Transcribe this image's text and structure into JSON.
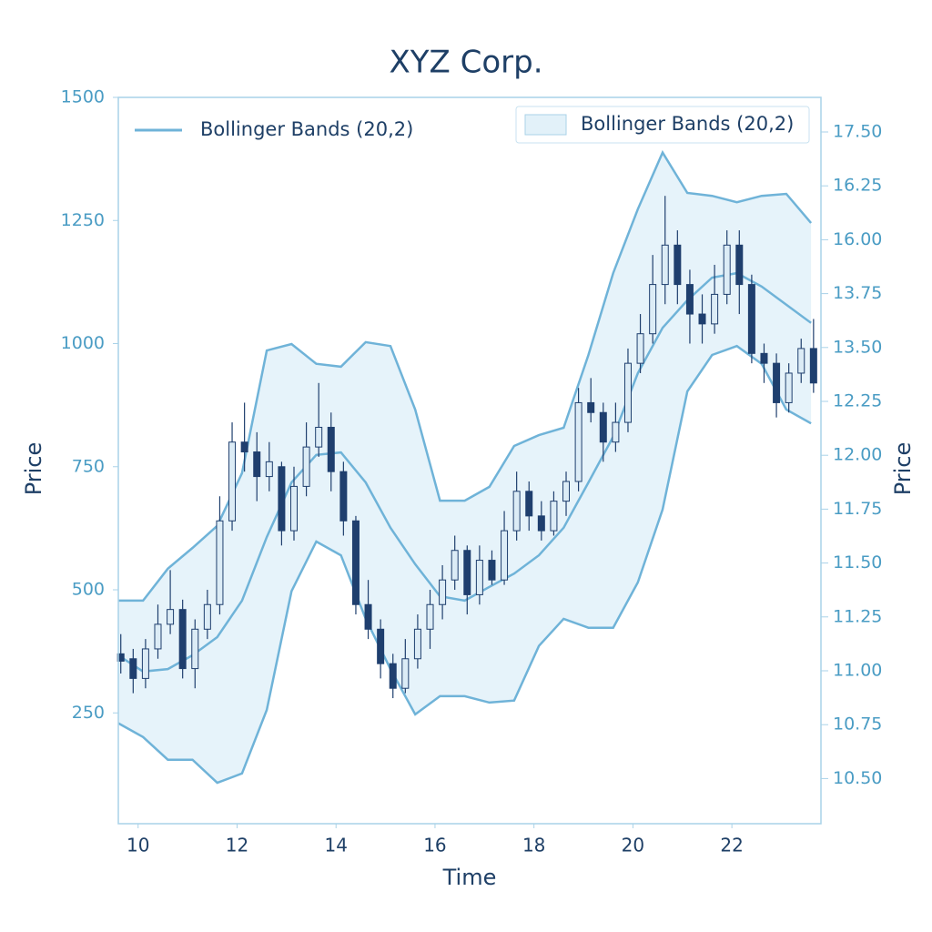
{
  "chart_data": {
    "type": "candlestick",
    "title": "XYZ Corp.",
    "xlabel": "Time",
    "ylabel": "Price",
    "y2label": "Price",
    "xlim": [
      9.6,
      23.8
    ],
    "xticks": [
      10,
      12,
      14,
      16,
      18,
      20,
      22
    ],
    "ylim": [
      25,
      1500
    ],
    "yticks": [
      250,
      500,
      750,
      1000,
      1250,
      1500
    ],
    "y2ticks": [
      "17.50",
      "16.25",
      "16.00",
      "13.75",
      "13.50",
      "12.25",
      "12.00",
      "11.75",
      "11.50",
      "11.25",
      "11.00",
      "10.75",
      "10.50"
    ],
    "candles": {
      "up_color": "#dcecf6",
      "down_color": "#1f3f6e",
      "x": [
        9.65,
        9.9,
        10.15,
        10.4,
        10.65,
        10.9,
        11.15,
        11.4,
        11.65,
        11.9,
        12.15,
        12.4,
        12.65,
        12.9,
        13.15,
        13.4,
        13.65,
        13.9,
        14.15,
        14.4,
        14.65,
        14.9,
        15.15,
        15.4,
        15.65,
        15.9,
        16.15,
        16.4,
        16.65,
        16.9,
        17.15,
        17.4,
        17.65,
        17.9,
        18.15,
        18.4,
        18.65,
        18.9,
        19.15,
        19.4,
        19.65,
        19.9,
        20.15,
        20.4,
        20.65,
        20.9,
        21.15,
        21.4,
        21.65,
        21.9,
        22.15,
        22.4,
        22.65,
        22.9,
        23.15,
        23.4,
        23.65
      ],
      "open": [
        370,
        360,
        320,
        380,
        430,
        460,
        340,
        420,
        470,
        640,
        800,
        780,
        730,
        750,
        620,
        710,
        790,
        830,
        740,
        640,
        470,
        420,
        350,
        300,
        360,
        420,
        470,
        520,
        580,
        490,
        560,
        520,
        620,
        700,
        650,
        620,
        680,
        720,
        880,
        860,
        800,
        840,
        960,
        1020,
        1120,
        1200,
        1120,
        1060,
        1040,
        1100,
        1200,
        1120,
        980,
        960,
        880,
        940,
        990
      ],
      "high": [
        410,
        380,
        400,
        470,
        540,
        480,
        440,
        500,
        690,
        840,
        880,
        820,
        800,
        760,
        750,
        840,
        920,
        860,
        760,
        650,
        520,
        440,
        370,
        400,
        450,
        500,
        550,
        610,
        590,
        590,
        580,
        660,
        740,
        720,
        680,
        700,
        740,
        910,
        930,
        880,
        880,
        990,
        1060,
        1180,
        1300,
        1230,
        1150,
        1100,
        1160,
        1230,
        1230,
        1140,
        1000,
        980,
        960,
        1010,
        1050
      ],
      "low": [
        330,
        290,
        300,
        360,
        410,
        320,
        300,
        400,
        450,
        620,
        740,
        680,
        700,
        590,
        600,
        690,
        770,
        700,
        610,
        450,
        400,
        320,
        280,
        290,
        340,
        380,
        440,
        500,
        450,
        470,
        510,
        510,
        600,
        620,
        600,
        610,
        650,
        700,
        840,
        760,
        780,
        820,
        940,
        1000,
        1080,
        1080,
        1000,
        1000,
        1020,
        1080,
        1060,
        960,
        920,
        850,
        860,
        920,
        900
      ],
      "close": [
        355,
        320,
        380,
        430,
        460,
        340,
        420,
        470,
        640,
        800,
        780,
        730,
        760,
        620,
        710,
        790,
        830,
        740,
        640,
        470,
        420,
        350,
        300,
        360,
        420,
        470,
        520,
        580,
        490,
        560,
        520,
        620,
        700,
        650,
        620,
        680,
        720,
        880,
        860,
        800,
        840,
        960,
        1020,
        1120,
        1200,
        1120,
        1060,
        1040,
        1100,
        1200,
        1120,
        980,
        960,
        880,
        940,
        990,
        920
      ]
    },
    "bollinger": {
      "line_name": "Bollinger Bands (20,2)",
      "fill_name": "Bollinger Bands (20,2)",
      "line_color": "#6fb3d8",
      "fill_color": "#e2f1f9",
      "x": [
        9.6,
        10.1,
        10.6,
        11.1,
        11.6,
        12.1,
        12.6,
        13.1,
        13.6,
        14.1,
        14.6,
        15.1,
        15.6,
        16.1,
        16.6,
        17.1,
        17.6,
        18.1,
        18.6,
        19.1,
        19.6,
        20.1,
        20.6,
        21.1,
        21.6,
        22.1,
        22.6,
        23.1,
        23.6
      ],
      "upper": [
        478,
        478,
        543,
        585,
        630,
        737,
        986,
        999,
        959,
        953,
        1003,
        995,
        866,
        681,
        681,
        709,
        792,
        814,
        829,
        977,
        1143,
        1273,
        1388,
        1306,
        1300,
        1287,
        1300,
        1304,
        1245
      ],
      "middle": [
        367,
        334,
        339,
        367,
        404,
        478,
        607,
        718,
        774,
        779,
        718,
        626,
        552,
        487,
        478,
        506,
        533,
        570,
        626,
        718,
        811,
        940,
        1032,
        1088,
        1134,
        1143,
        1116,
        1079,
        1042
      ],
      "lower": [
        229,
        201,
        155,
        155,
        108,
        127,
        256,
        497,
        598,
        570,
        441,
        339,
        247,
        284,
        284,
        271,
        275,
        386,
        441,
        423,
        423,
        515,
        663,
        903,
        977,
        995,
        959,
        866,
        838
      ]
    }
  }
}
